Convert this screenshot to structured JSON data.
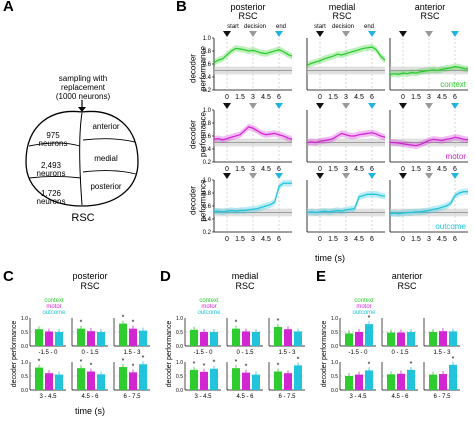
{
  "panels": {
    "A": {
      "letter": "A",
      "caption": "sampling with replacement (1000 neurons)",
      "caption_line1": "sampling with",
      "caption_line2": "replacement",
      "caption_line3": "(1000 neurons)",
      "regions": [
        "anterior",
        "medial",
        "posterior"
      ],
      "neurons": [
        "975\nneurons",
        "2,493\nneurons",
        "1,726\nneurons"
      ],
      "neurons_num": [
        "975",
        "2,493",
        "1,726"
      ],
      "neurons_unit": "neurons",
      "label": "RSC"
    },
    "B": {
      "letter": "B",
      "columns": [
        {
          "l1": "posterior",
          "l2": "RSC"
        },
        {
          "l1": "medial",
          "l2": "RSC"
        },
        {
          "l1": "anterior",
          "l2": "RSC"
        }
      ],
      "events": [
        "start",
        "decision",
        "end"
      ],
      "ylabel_l1": "decoder",
      "ylabel_l2": "performance",
      "ylabel_alt": "performance",
      "ylabel_typo": "peformance",
      "yticks": [
        "1.0",
        "0.8",
        "0.6",
        "0.4",
        "0.2"
      ],
      "xticks": [
        "0",
        "1.5",
        "3",
        "4.5",
        "6"
      ],
      "xlabel": "time (s)",
      "rows": [
        "context",
        "motor",
        "outcome"
      ],
      "colors": {
        "context": "#2ecc2e",
        "motor": "#d326d3",
        "outcome": "#22c4dc"
      }
    },
    "C": {
      "letter": "C",
      "l1": "posterior",
      "l2": "RSC"
    },
    "D": {
      "letter": "D",
      "l1": "medial",
      "l2": "RSC"
    },
    "E": {
      "letter": "E",
      "l1": "anterior",
      "l2": "RSC"
    },
    "bars_common": {
      "legend": [
        "context",
        "motor",
        "outcome"
      ],
      "ylabel": "decoder performance",
      "yticks": [
        "1.0",
        "0.5",
        "0.0"
      ],
      "windows": [
        "-1.5 - 0",
        "0 - 1.5",
        "1.5 - 3",
        "3 - 4.5",
        "4.5 - 6",
        "6 - 7.5"
      ],
      "xlabel": "time (s)",
      "star": "*"
    }
  },
  "chart_data": [
    {
      "type": "line",
      "title": "decoder performance over time (panel B)",
      "x_range": [
        -1.5,
        7.5
      ],
      "ylim": [
        0.2,
        1.0
      ],
      "series": [
        {
          "name": "posterior context",
          "x": [
            -1.5,
            -1,
            -0.5,
            0,
            0.5,
            1,
            1.5,
            2,
            2.5,
            3,
            3.5,
            4,
            4.5,
            5,
            5.5,
            6,
            6.5,
            7,
            7.5
          ],
          "y": [
            0.62,
            0.66,
            0.68,
            0.74,
            0.8,
            0.84,
            0.83,
            0.82,
            0.8,
            0.81,
            0.79,
            0.77,
            0.76,
            0.78,
            0.8,
            0.82,
            0.79,
            0.75,
            0.72
          ]
        },
        {
          "name": "medial context",
          "x": [
            -1.5,
            -1,
            -0.5,
            0,
            0.5,
            1,
            1.5,
            2,
            2.5,
            3,
            3.5,
            4,
            4.5,
            5,
            5.5,
            6,
            6.5,
            7,
            7.5
          ],
          "y": [
            0.58,
            0.61,
            0.63,
            0.65,
            0.68,
            0.7,
            0.72,
            0.75,
            0.74,
            0.76,
            0.78,
            0.8,
            0.82,
            0.84,
            0.85,
            0.86,
            0.82,
            0.72,
            0.66
          ]
        },
        {
          "name": "anterior context",
          "x": [
            -1.5,
            -1,
            -0.5,
            0,
            0.5,
            1,
            1.5,
            2,
            2.5,
            3,
            3.5,
            4,
            4.5,
            5,
            5.5,
            6,
            6.5,
            7,
            7.5
          ],
          "y": [
            0.44,
            0.45,
            0.44,
            0.46,
            0.45,
            0.47,
            0.46,
            0.48,
            0.49,
            0.5,
            0.51,
            0.5,
            0.52,
            0.53,
            0.54,
            0.56,
            0.55,
            0.53,
            0.52
          ]
        },
        {
          "name": "posterior motor",
          "x": [
            -1.5,
            -1,
            -0.5,
            0,
            0.5,
            1,
            1.5,
            2,
            2.5,
            3,
            3.5,
            4,
            4.5,
            5,
            5.5,
            6,
            6.5,
            7,
            7.5
          ],
          "y": [
            0.55,
            0.56,
            0.54,
            0.56,
            0.58,
            0.6,
            0.62,
            0.68,
            0.74,
            0.72,
            0.68,
            0.64,
            0.62,
            0.63,
            0.64,
            0.62,
            0.6,
            0.57,
            0.55
          ]
        },
        {
          "name": "medial motor",
          "x": [
            -1.5,
            -1,
            -0.5,
            0,
            0.5,
            1,
            1.5,
            2,
            2.5,
            3,
            3.5,
            4,
            4.5,
            5,
            5.5,
            6,
            6.5,
            7,
            7.5
          ],
          "y": [
            0.5,
            0.51,
            0.5,
            0.52,
            0.53,
            0.54,
            0.56,
            0.6,
            0.64,
            0.62,
            0.6,
            0.6,
            0.62,
            0.63,
            0.64,
            0.65,
            0.63,
            0.6,
            0.58
          ]
        },
        {
          "name": "anterior motor",
          "x": [
            -1.5,
            -1,
            -0.5,
            0,
            0.5,
            1,
            1.5,
            2,
            2.5,
            3,
            3.5,
            4,
            4.5,
            5,
            5.5,
            6,
            6.5,
            7,
            7.5
          ],
          "y": [
            0.5,
            0.5,
            0.49,
            0.48,
            0.47,
            0.46,
            0.45,
            0.47,
            0.5,
            0.53,
            0.55,
            0.54,
            0.53,
            0.55,
            0.56,
            0.58,
            0.57,
            0.55,
            0.54
          ]
        },
        {
          "name": "posterior outcome",
          "x": [
            -1.5,
            -1,
            -0.5,
            0,
            0.5,
            1,
            1.5,
            2,
            2.5,
            3,
            3.5,
            4,
            4.5,
            5,
            5.5,
            6,
            6.5,
            7,
            7.5
          ],
          "y": [
            0.52,
            0.52,
            0.51,
            0.52,
            0.53,
            0.52,
            0.53,
            0.53,
            0.54,
            0.55,
            0.56,
            0.58,
            0.6,
            0.62,
            0.66,
            0.9,
            0.95,
            0.95,
            0.95
          ]
        },
        {
          "name": "medial outcome",
          "x": [
            -1.5,
            -1,
            -0.5,
            0,
            0.5,
            1,
            1.5,
            2,
            2.5,
            3,
            3.5,
            4,
            4.5,
            5,
            5.5,
            6,
            6.5,
            7,
            7.5
          ],
          "y": [
            0.5,
            0.51,
            0.5,
            0.51,
            0.52,
            0.51,
            0.52,
            0.53,
            0.52,
            0.54,
            0.55,
            0.56,
            0.74,
            0.76,
            0.78,
            0.78,
            0.78,
            0.76,
            0.75
          ]
        },
        {
          "name": "anterior outcome",
          "x": [
            -1.5,
            -1,
            -0.5,
            0,
            0.5,
            1,
            1.5,
            2,
            2.5,
            3,
            3.5,
            4,
            4.5,
            5,
            5.5,
            6,
            6.5,
            7,
            7.5
          ],
          "y": [
            0.48,
            0.49,
            0.48,
            0.49,
            0.5,
            0.5,
            0.51,
            0.51,
            0.52,
            0.53,
            0.55,
            0.56,
            0.58,
            0.6,
            0.64,
            0.76,
            0.8,
            0.82,
            0.82
          ]
        }
      ]
    },
    {
      "type": "bar",
      "title": "posterior RSC (panel C)",
      "categories": [
        "-1.5 - 0",
        "0 - 1.5",
        "1.5 - 3",
        "3 - 4.5",
        "4.5 - 6",
        "6 - 7.5"
      ],
      "ylim": [
        0,
        1
      ],
      "series": [
        {
          "name": "context",
          "values": [
            0.6,
            0.62,
            0.8,
            0.8,
            0.78,
            0.82
          ]
        },
        {
          "name": "motor",
          "values": [
            0.52,
            0.53,
            0.62,
            0.6,
            0.66,
            0.63
          ]
        },
        {
          "name": "outcome",
          "values": [
            0.5,
            0.5,
            0.55,
            0.55,
            0.56,
            0.92
          ]
        }
      ]
    },
    {
      "type": "bar",
      "title": "medial RSC (panel D)",
      "categories": [
        "-1.5 - 0",
        "0 - 1.5",
        "1.5 - 3",
        "3 - 4.5",
        "4.5 - 6",
        "6 - 7.5"
      ],
      "ylim": [
        0,
        1
      ],
      "series": [
        {
          "name": "context",
          "values": [
            0.58,
            0.62,
            0.68,
            0.72,
            0.78,
            0.66
          ]
        },
        {
          "name": "motor",
          "values": [
            0.5,
            0.52,
            0.6,
            0.65,
            0.62,
            0.6
          ]
        },
        {
          "name": "outcome",
          "values": [
            0.5,
            0.5,
            0.52,
            0.76,
            0.55,
            0.88
          ]
        }
      ]
    },
    {
      "type": "bar",
      "title": "anterior RSC (panel E)",
      "categories": [
        "-1.5 - 0",
        "0 - 1.5",
        "1.5 - 3",
        "3 - 4.5",
        "4.5 - 6",
        "6 - 7.5"
      ],
      "ylim": [
        0,
        1
      ],
      "series": [
        {
          "name": "context",
          "values": [
            0.45,
            0.48,
            0.5,
            0.5,
            0.56,
            0.55
          ]
        },
        {
          "name": "motor",
          "values": [
            0.5,
            0.48,
            0.53,
            0.55,
            0.58,
            0.57
          ]
        },
        {
          "name": "outcome",
          "values": [
            0.78,
            0.5,
            0.52,
            0.7,
            0.72,
            0.9
          ]
        }
      ]
    }
  ]
}
